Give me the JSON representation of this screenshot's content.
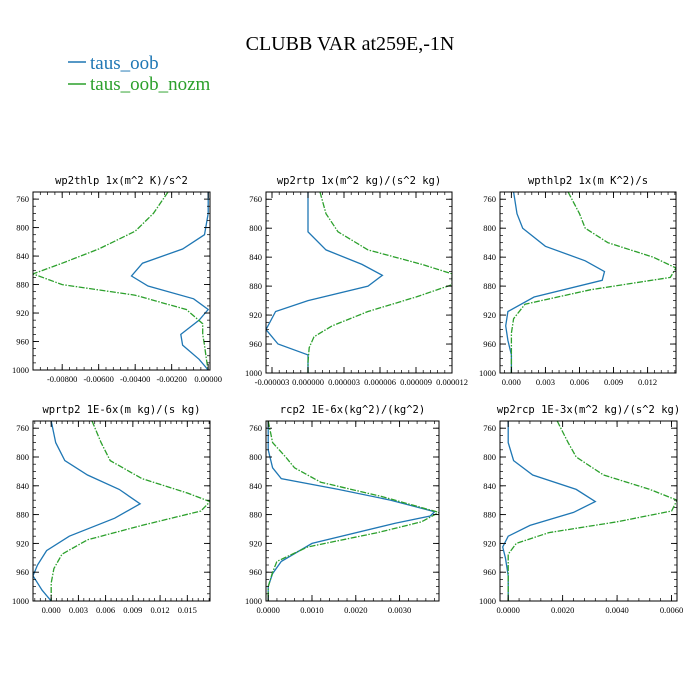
{
  "title": "CLUBB VAR at259E,-1N",
  "legend": [
    {
      "label": "taus_oob",
      "color": "#1f77b4"
    },
    {
      "label": "taus_oob_nozm",
      "color": "#2ca02c"
    }
  ],
  "chart_data": [
    {
      "type": "line",
      "title": "wp2thlp   1x(m^2 K)/s^2",
      "xlim": [
        -0.0096,
        0.0001
      ],
      "ylim": [
        1000,
        750
      ],
      "xticks": [
        -0.008,
        -0.006,
        -0.004,
        -0.002,
        0.0
      ],
      "xtick_labels": [
        "-0.00800",
        "-0.00600",
        "-0.00400",
        "-0.00200",
        "0.00000"
      ],
      "yticks": [
        760,
        800,
        840,
        880,
        920,
        960,
        1000
      ],
      "series": [
        {
          "name": "taus_oob",
          "x": [
            0.0,
            0.0,
            -0.0002,
            -0.0014,
            -0.0036,
            -0.0042,
            -0.0033,
            -0.0008,
            0.0,
            -0.0005,
            -0.0015,
            -0.0014,
            -0.0005,
            0.0
          ],
          "y": [
            750,
            780,
            810,
            830,
            850,
            868,
            882,
            900,
            915,
            930,
            950,
            965,
            985,
            1000
          ]
        },
        {
          "name": "taus_oob_nozm",
          "x": [
            -0.0022,
            -0.003,
            -0.004,
            -0.006,
            -0.008,
            -0.0096,
            -0.008,
            -0.004,
            -0.0012,
            -0.0003,
            -0.0003,
            -0.0002,
            -0.0001,
            0.0
          ],
          "y": [
            750,
            780,
            805,
            830,
            850,
            865,
            880,
            895,
            915,
            935,
            950,
            965,
            985,
            1000
          ]
        }
      ]
    },
    {
      "type": "line",
      "title": "wp2rtp   1x(m^2 kg)/(s^2 kg)",
      "xlim": [
        -3.5e-06,
        1.2e-05
      ],
      "ylim": [
        1000,
        750
      ],
      "xticks": [
        -3e-06,
        0.0,
        3e-06,
        6e-06,
        9e-06,
        1.2e-05
      ],
      "xtick_labels": [
        "-0.000003",
        "0.000000",
        "0.000003",
        "0.000006",
        "0.000009",
        "0.000012"
      ],
      "yticks": [
        760,
        800,
        840,
        880,
        920,
        960,
        1000
      ],
      "series": [
        {
          "name": "taus_oob",
          "x": [
            0.0,
            0.0,
            0.0,
            1.5e-06,
            4.5e-06,
            6.2e-06,
            5e-06,
            0.0,
            -2.7e-06,
            -3.5e-06,
            -2.5e-06,
            0.0,
            0.0,
            0.0
          ],
          "y": [
            750,
            780,
            805,
            830,
            850,
            865,
            880,
            900,
            915,
            940,
            960,
            975,
            990,
            1000
          ]
        },
        {
          "name": "taus_oob_nozm",
          "x": [
            1e-06,
            1.5e-06,
            2.5e-06,
            5e-06,
            9.5e-06,
            1.2e-05,
            1.2e-05,
            9e-06,
            5e-06,
            2e-06,
            5e-07,
            1e-07,
            0.0,
            0.0
          ],
          "y": [
            750,
            780,
            805,
            830,
            850,
            863,
            878,
            895,
            915,
            935,
            950,
            965,
            985,
            1000
          ]
        }
      ]
    },
    {
      "type": "line",
      "title": "wpthlp2   1x(m K^2)/s",
      "xlim": [
        -0.001,
        0.0145
      ],
      "ylim": [
        1000,
        750
      ],
      "xticks": [
        0.0,
        0.003,
        0.006,
        0.009,
        0.012
      ],
      "xtick_labels": [
        "0.000",
        "0.003",
        "0.006",
        "0.009",
        "0.012"
      ],
      "yticks": [
        760,
        800,
        840,
        880,
        920,
        960,
        1000
      ],
      "series": [
        {
          "name": "taus_oob",
          "x": [
            0.0002,
            0.0005,
            0.001,
            0.003,
            0.0065,
            0.0082,
            0.008,
            0.002,
            -0.0003,
            -0.0005,
            -0.0003,
            0.0,
            0.0
          ],
          "y": [
            750,
            780,
            800,
            825,
            845,
            860,
            872,
            895,
            915,
            935,
            955,
            975,
            1000
          ]
        },
        {
          "name": "taus_oob_nozm",
          "x": [
            0.005,
            0.006,
            0.0065,
            0.0085,
            0.0125,
            0.0145,
            0.014,
            0.007,
            0.0012,
            0.0002,
            0.0,
            0.0,
            0.0
          ],
          "y": [
            750,
            780,
            800,
            820,
            840,
            855,
            868,
            885,
            905,
            925,
            945,
            970,
            1000
          ]
        }
      ]
    },
    {
      "type": "line",
      "title": "wprtp2   1E-6x(m kg)/(s kg)",
      "xlim": [
        -0.002,
        0.0175
      ],
      "ylim": [
        1000,
        750
      ],
      "xticks": [
        0.0,
        0.003,
        0.006,
        0.009,
        0.012,
        0.015
      ],
      "xtick_labels": [
        "0.000",
        "0.003",
        "0.006",
        "0.009",
        "0.012",
        "0.015"
      ],
      "yticks": [
        760,
        800,
        840,
        880,
        920,
        960,
        1000
      ],
      "series": [
        {
          "name": "taus_oob",
          "x": [
            0.0,
            0.0005,
            0.0015,
            0.004,
            0.0075,
            0.0098,
            0.007,
            0.002,
            -0.0005,
            -0.0015,
            -0.002,
            -0.001,
            0.0
          ],
          "y": [
            750,
            780,
            805,
            825,
            845,
            865,
            885,
            910,
            930,
            950,
            965,
            985,
            1000
          ]
        },
        {
          "name": "taus_oob_nozm",
          "x": [
            0.0045,
            0.0055,
            0.0065,
            0.01,
            0.015,
            0.0175,
            0.0165,
            0.01,
            0.004,
            0.0012,
            0.0003,
            0.0,
            0.0
          ],
          "y": [
            750,
            780,
            805,
            830,
            850,
            862,
            875,
            895,
            915,
            935,
            955,
            975,
            1000
          ]
        }
      ]
    },
    {
      "type": "line",
      "title": "rcp2   1E-6x(kg^2)/(kg^2)",
      "xlim": [
        -5e-05,
        0.0039
      ],
      "ylim": [
        1000,
        750
      ],
      "xticks": [
        0.0,
        0.001,
        0.002,
        0.003
      ],
      "xtick_labels": [
        "0.0000",
        "0.0010",
        "0.0020",
        "0.0030"
      ],
      "yticks": [
        760,
        800,
        840,
        880,
        920,
        960,
        1000
      ],
      "series": [
        {
          "name": "taus_oob",
          "x": [
            0.0,
            0.0,
            0.0001,
            0.0003,
            0.0016,
            0.0028,
            0.0038,
            0.0037,
            0.0029,
            0.001,
            0.0003,
            0.0001,
            0.0,
            0.0
          ],
          "y": [
            750,
            790,
            815,
            830,
            845,
            860,
            876,
            882,
            892,
            920,
            945,
            962,
            980,
            1000
          ]
        },
        {
          "name": "taus_oob_nozm",
          "x": [
            0.0,
            0.0001,
            0.0004,
            0.0006,
            0.0012,
            0.0026,
            0.0039,
            0.0035,
            0.0025,
            0.0009,
            0.0002,
            0.0001,
            0.0,
            0.0
          ],
          "y": [
            750,
            780,
            800,
            815,
            835,
            855,
            877,
            890,
            905,
            925,
            945,
            960,
            980,
            1000
          ]
        }
      ]
    },
    {
      "type": "line",
      "title": "wp2rcp   1E-3x(m^2 kg)/(s^2 kg)",
      "xlim": [
        -0.0003,
        0.0062
      ],
      "ylim": [
        1000,
        750
      ],
      "xticks": [
        0.0,
        0.002,
        0.004,
        0.006
      ],
      "xtick_labels": [
        "0.0000",
        "0.0020",
        "0.0040",
        "0.0060"
      ],
      "yticks": [
        760,
        800,
        840,
        880,
        920,
        960,
        1000
      ],
      "series": [
        {
          "name": "taus_oob",
          "x": [
            0.0,
            0.0,
            0.0002,
            0.0009,
            0.0025,
            0.0032,
            0.0024,
            0.0008,
            0.0,
            -0.0002,
            -0.0001,
            0.0,
            0.0
          ],
          "y": [
            750,
            780,
            805,
            825,
            845,
            862,
            877,
            895,
            910,
            925,
            940,
            965,
            1000
          ]
        },
        {
          "name": "taus_oob_nozm",
          "x": [
            0.0018,
            0.0022,
            0.0025,
            0.0035,
            0.0052,
            0.0062,
            0.006,
            0.004,
            0.0015,
            0.0003,
            0.0,
            0.0,
            0.0
          ],
          "y": [
            750,
            780,
            800,
            825,
            845,
            860,
            875,
            890,
            905,
            920,
            935,
            960,
            1000
          ]
        }
      ]
    }
  ]
}
